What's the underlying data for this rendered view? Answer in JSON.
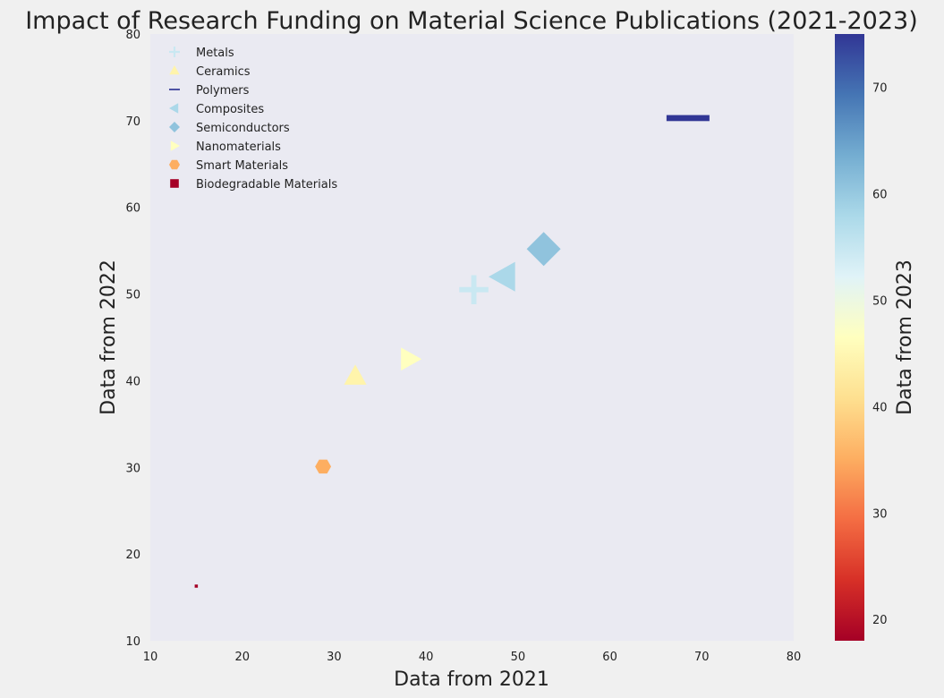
{
  "chart_data": {
    "type": "scatter",
    "title": "Impact of Research Funding on Material Science Publications (2021-2023)",
    "xlabel": "Data from 2021",
    "ylabel": "Data from 2022",
    "colorbar_label": "Data from 2023",
    "xlim": [
      10,
      80
    ],
    "ylim": [
      10,
      80
    ],
    "xticks": [
      "10",
      "20",
      "30",
      "40",
      "50",
      "60",
      "70",
      "80"
    ],
    "yticks": [
      "10",
      "20",
      "30",
      "40",
      "50",
      "60",
      "70",
      "80"
    ],
    "colorbar_range": [
      18,
      75
    ],
    "colorbar_ticks": [
      "20",
      "30",
      "40",
      "50",
      "60",
      "70"
    ],
    "colormap": "RdYlBu",
    "grid": false,
    "legend_position": "top-left",
    "series": [
      {
        "name": "Metals",
        "marker": "plus",
        "x": 45.2,
        "y": 50.5,
        "color_value": 55,
        "color": "#c9e8f2"
      },
      {
        "name": "Ceramics",
        "marker": "triangle-up",
        "x": 32.3,
        "y": 40.5,
        "color_value": 47,
        "color": "#fff4ab"
      },
      {
        "name": "Polymers",
        "marker": "hline",
        "x": 68.5,
        "y": 70.3,
        "color_value": 75,
        "color": "#313695"
      },
      {
        "name": "Composites",
        "marker": "triangle-left",
        "x": 48.5,
        "y": 52.0,
        "color_value": 58,
        "color": "#abd8e9"
      },
      {
        "name": "Semiconductors",
        "marker": "diamond",
        "x": 52.8,
        "y": 55.2,
        "color_value": 62,
        "color": "#90c3dd"
      },
      {
        "name": "Nanomaterials",
        "marker": "triangle-right",
        "x": 38.2,
        "y": 42.5,
        "color_value": 48,
        "color": "#ffffbf"
      },
      {
        "name": "Smart Materials",
        "marker": "hexagon",
        "x": 28.8,
        "y": 30.1,
        "color_value": 36,
        "color": "#fdae61"
      },
      {
        "name": "Biodegradable Materials",
        "marker": "square",
        "x": 15.0,
        "y": 16.3,
        "color_value": 18,
        "color": "#a50026"
      }
    ]
  }
}
